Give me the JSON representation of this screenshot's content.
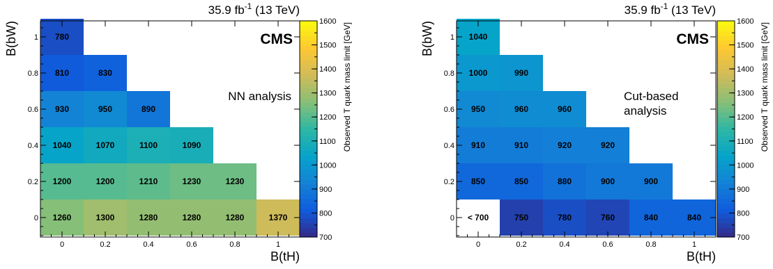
{
  "chart_data": [
    {
      "type": "heatmap",
      "lumi": "35.9 fb",
      "lumi_sup": "-1",
      "lumi_energy": " (13 TeV)",
      "cms_label": "CMS",
      "annotation": [
        "NN analysis"
      ],
      "xlabel": "B(tH)",
      "ylabel": "B(bW)",
      "x_ticks": [
        "0",
        "0.2",
        "0.4",
        "0.6",
        "0.8",
        "1"
      ],
      "y_ticks": [
        "0",
        "0.2",
        "0.4",
        "0.6",
        "0.8",
        "1"
      ],
      "colorbar_label": "Observed T quark mass limit [GeV]",
      "colorbar_ticks": [
        "700",
        "800",
        "900",
        "1000",
        "1100",
        "1200",
        "1300",
        "1400",
        "1500",
        "1600"
      ],
      "zlim": [
        700,
        1600
      ],
      "cells": [
        {
          "x": 0.0,
          "y": 0.0,
          "value": 1260,
          "label": "1260"
        },
        {
          "x": 0.2,
          "y": 0.0,
          "value": 1300,
          "label": "1300"
        },
        {
          "x": 0.4,
          "y": 0.0,
          "value": 1280,
          "label": "1280"
        },
        {
          "x": 0.6,
          "y": 0.0,
          "value": 1280,
          "label": "1280"
        },
        {
          "x": 0.8,
          "y": 0.0,
          "value": 1280,
          "label": "1280"
        },
        {
          "x": 1.0,
          "y": 0.0,
          "value": 1370,
          "label": "1370"
        },
        {
          "x": 0.0,
          "y": 0.2,
          "value": 1200,
          "label": "1200"
        },
        {
          "x": 0.2,
          "y": 0.2,
          "value": 1200,
          "label": "1200"
        },
        {
          "x": 0.4,
          "y": 0.2,
          "value": 1210,
          "label": "1210"
        },
        {
          "x": 0.6,
          "y": 0.2,
          "value": 1230,
          "label": "1230"
        },
        {
          "x": 0.8,
          "y": 0.2,
          "value": 1230,
          "label": "1230"
        },
        {
          "x": 0.0,
          "y": 0.4,
          "value": 1040,
          "label": "1040"
        },
        {
          "x": 0.2,
          "y": 0.4,
          "value": 1070,
          "label": "1070"
        },
        {
          "x": 0.4,
          "y": 0.4,
          "value": 1100,
          "label": "1100"
        },
        {
          "x": 0.6,
          "y": 0.4,
          "value": 1090,
          "label": "1090"
        },
        {
          "x": 0.0,
          "y": 0.6,
          "value": 930,
          "label": "930"
        },
        {
          "x": 0.2,
          "y": 0.6,
          "value": 950,
          "label": "950"
        },
        {
          "x": 0.4,
          "y": 0.6,
          "value": 890,
          "label": "890"
        },
        {
          "x": 0.0,
          "y": 0.8,
          "value": 810,
          "label": "810"
        },
        {
          "x": 0.2,
          "y": 0.8,
          "value": 830,
          "label": "830"
        },
        {
          "x": 0.0,
          "y": 1.0,
          "value": 780,
          "label": "780"
        }
      ]
    },
    {
      "type": "heatmap",
      "lumi": "35.9 fb",
      "lumi_sup": "-1",
      "lumi_energy": " (13 TeV)",
      "cms_label": "CMS",
      "annotation": [
        "Cut-based",
        "analysis"
      ],
      "xlabel": "B(tH)",
      "ylabel": "B(bW)",
      "x_ticks": [
        "0",
        "0.2",
        "0.4",
        "0.6",
        "0.8",
        "1"
      ],
      "y_ticks": [
        "0",
        "0.2",
        "0.4",
        "0.6",
        "0.8",
        "1"
      ],
      "colorbar_label": "Observed T quark mass limit [GeV]",
      "colorbar_ticks": [
        "700",
        "800",
        "900",
        "1000",
        "1100",
        "1200",
        "1300",
        "1400",
        "1500",
        "1600"
      ],
      "zlim": [
        700,
        1600
      ],
      "cells": [
        {
          "x": 0.0,
          "y": 0.0,
          "value": null,
          "label": "< 700"
        },
        {
          "x": 0.2,
          "y": 0.0,
          "value": 750,
          "label": "750"
        },
        {
          "x": 0.4,
          "y": 0.0,
          "value": 780,
          "label": "780"
        },
        {
          "x": 0.6,
          "y": 0.0,
          "value": 760,
          "label": "760"
        },
        {
          "x": 0.8,
          "y": 0.0,
          "value": 840,
          "label": "840"
        },
        {
          "x": 1.0,
          "y": 0.0,
          "value": 840,
          "label": "840"
        },
        {
          "x": 0.0,
          "y": 0.2,
          "value": 850,
          "label": "850"
        },
        {
          "x": 0.2,
          "y": 0.2,
          "value": 850,
          "label": "850"
        },
        {
          "x": 0.4,
          "y": 0.2,
          "value": 880,
          "label": "880"
        },
        {
          "x": 0.6,
          "y": 0.2,
          "value": 900,
          "label": "900"
        },
        {
          "x": 0.8,
          "y": 0.2,
          "value": 900,
          "label": "900"
        },
        {
          "x": 0.0,
          "y": 0.4,
          "value": 910,
          "label": "910"
        },
        {
          "x": 0.2,
          "y": 0.4,
          "value": 910,
          "label": "910"
        },
        {
          "x": 0.4,
          "y": 0.4,
          "value": 920,
          "label": "920"
        },
        {
          "x": 0.6,
          "y": 0.4,
          "value": 920,
          "label": "920"
        },
        {
          "x": 0.0,
          "y": 0.6,
          "value": 950,
          "label": "950"
        },
        {
          "x": 0.2,
          "y": 0.6,
          "value": 960,
          "label": "960"
        },
        {
          "x": 0.4,
          "y": 0.6,
          "value": 960,
          "label": "960"
        },
        {
          "x": 0.0,
          "y": 0.8,
          "value": 1000,
          "label": "1000"
        },
        {
          "x": 0.2,
          "y": 0.8,
          "value": 990,
          "label": "990"
        },
        {
          "x": 0.0,
          "y": 1.0,
          "value": 1040,
          "label": "1040"
        }
      ]
    }
  ],
  "palette": [
    "#352a87",
    "#0f5cdd",
    "#1481d6",
    "#06a4ca",
    "#2eb7a4",
    "#87bf77",
    "#d1bb59",
    "#fec832",
    "#f9fb0e"
  ]
}
